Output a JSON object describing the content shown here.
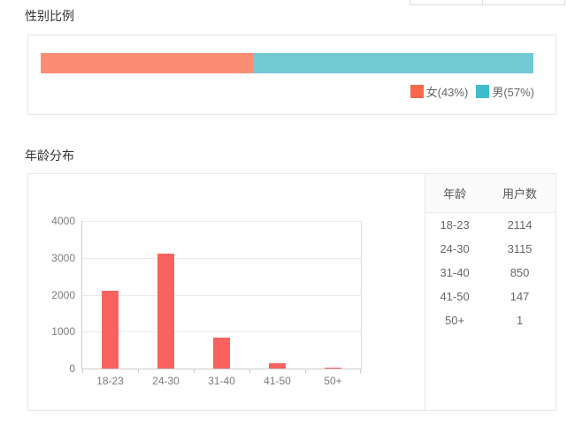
{
  "gender": {
    "title": "性别比例"
  },
  "age": {
    "title": "年龄分布",
    "table": {
      "headers": [
        "年龄",
        "用户数"
      ],
      "rows": [
        [
          "18-23",
          "2114"
        ],
        [
          "24-30",
          "3115"
        ],
        [
          "31-40",
          "850"
        ],
        [
          "41-50",
          "147"
        ],
        [
          "50+",
          "1"
        ]
      ]
    }
  },
  "chart_data": [
    {
      "type": "bar",
      "title": "性别比例",
      "orientation": "horizontal",
      "stacked": true,
      "series": [
        {
          "name": "female",
          "label": "女",
          "values": [
            43
          ]
        },
        {
          "name": "male",
          "label": "男",
          "values": [
            57
          ]
        }
      ],
      "unit": "percent",
      "colors": [
        "#fb8d74",
        "#70c9d3"
      ],
      "legend": [
        "女(43%)",
        "男(57%)"
      ],
      "legend_colors": [
        "#f8684b",
        "#3ebdcd"
      ],
      "legend_position": "bottom-right",
      "xlim": [
        0,
        100
      ]
    },
    {
      "type": "bar",
      "title": "年龄分布",
      "categories": [
        "18-23",
        "24-30",
        "31-40",
        "41-50",
        "50+"
      ],
      "values": [
        2114,
        3115,
        850,
        147,
        1
      ],
      "xlabel": "",
      "ylabel": "",
      "ylim": [
        0,
        4000
      ],
      "yticks": [
        0,
        1000,
        2000,
        3000,
        4000
      ],
      "bar_color": "#f9635f",
      "grid": true,
      "legend_position": "none"
    }
  ]
}
